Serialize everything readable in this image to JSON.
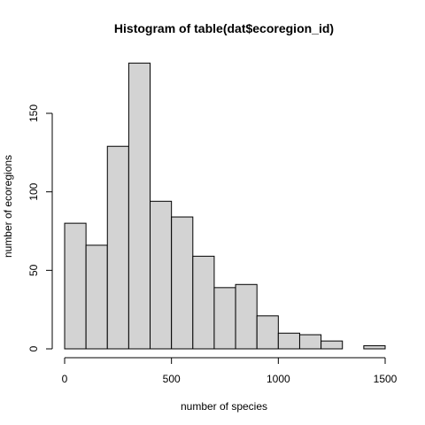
{
  "chart_data": {
    "type": "bar",
    "title": "Histogram of table(dat$ecoregion_id)",
    "xlabel": "number of species",
    "ylabel": "number of ecoregions",
    "bin_edges": [
      0,
      100,
      200,
      300,
      400,
      500,
      600,
      700,
      800,
      900,
      1000,
      1100,
      1200,
      1300,
      1400,
      1500
    ],
    "values": [
      80,
      66,
      129,
      182,
      94,
      84,
      59,
      39,
      41,
      21,
      10,
      9,
      5,
      0,
      2
    ],
    "xlim": [
      0,
      1500
    ],
    "ylim": [
      0,
      182
    ],
    "xticks": [
      0,
      500,
      1000,
      1500
    ],
    "yticks": [
      0,
      50,
      100,
      150
    ],
    "grid": false,
    "bar_color": "#d3d3d3",
    "edge_color": "#000000"
  }
}
